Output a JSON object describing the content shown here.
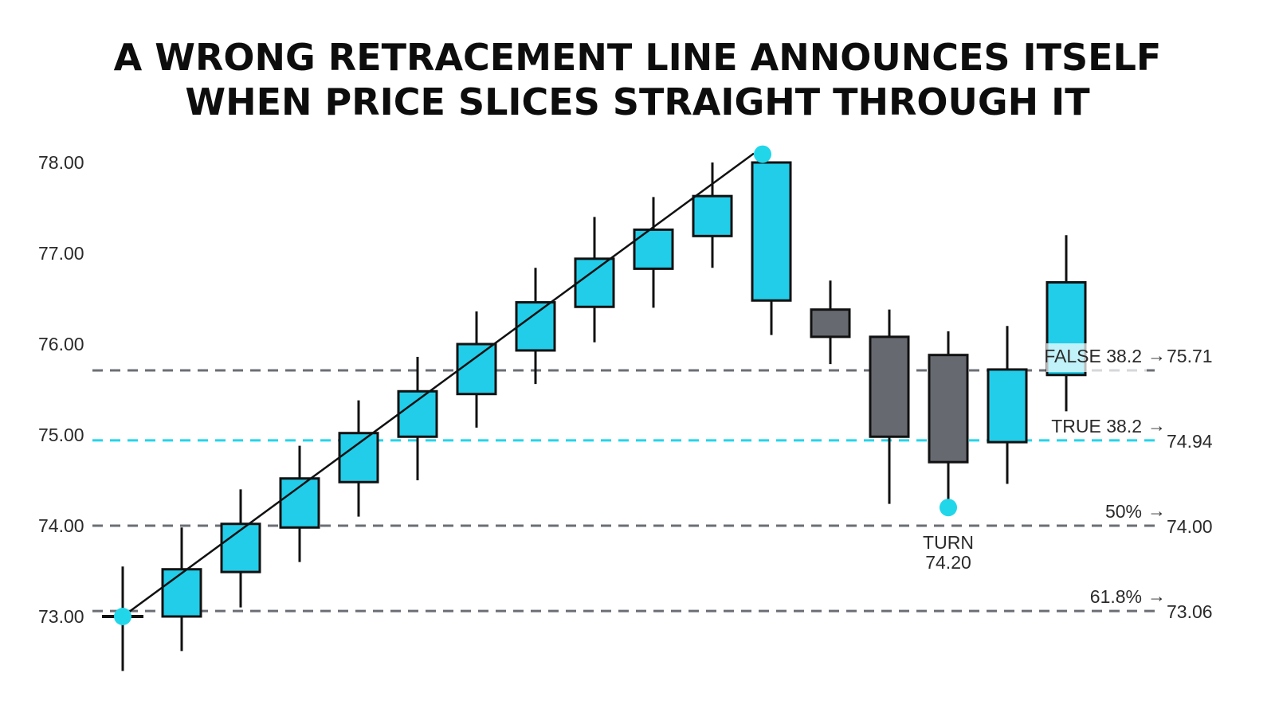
{
  "title": {
    "line1": "A WRONG RETRACEMENT LINE ANNOUNCES ITSELF",
    "line2": "WHEN PRICE SLICES STRAIGHT THROUGH IT"
  },
  "colors": {
    "bull": "#22cde9",
    "bear": "#666a70",
    "outline": "#111111",
    "accent": "#22d6ea",
    "level_gray": "#6b6f75"
  },
  "chart_data": {
    "type": "candlestick",
    "ylim": [
      72.4,
      78.2
    ],
    "y_ticks": [
      "78.00",
      "77.00",
      "76.00",
      "75.00",
      "74.00",
      "73.00"
    ],
    "candles": [
      {
        "o": 73.0,
        "h": 73.55,
        "l": 72.4,
        "c": 73.0,
        "dir": "doji"
      },
      {
        "o": 73.0,
        "h": 73.98,
        "l": 72.62,
        "c": 73.52,
        "dir": "up"
      },
      {
        "o": 73.49,
        "h": 74.4,
        "l": 73.1,
        "c": 74.02,
        "dir": "up"
      },
      {
        "o": 73.98,
        "h": 74.88,
        "l": 73.6,
        "c": 74.52,
        "dir": "up"
      },
      {
        "o": 74.48,
        "h": 75.38,
        "l": 74.1,
        "c": 75.02,
        "dir": "up"
      },
      {
        "o": 74.98,
        "h": 75.86,
        "l": 74.5,
        "c": 75.48,
        "dir": "up"
      },
      {
        "o": 75.45,
        "h": 76.36,
        "l": 75.08,
        "c": 76.0,
        "dir": "up"
      },
      {
        "o": 75.93,
        "h": 76.84,
        "l": 75.56,
        "c": 76.46,
        "dir": "up"
      },
      {
        "o": 76.41,
        "h": 77.4,
        "l": 76.02,
        "c": 76.94,
        "dir": "up"
      },
      {
        "o": 76.83,
        "h": 77.62,
        "l": 76.4,
        "c": 77.26,
        "dir": "up"
      },
      {
        "o": 77.19,
        "h": 78.0,
        "l": 76.84,
        "c": 77.63,
        "dir": "up"
      },
      {
        "o": 76.48,
        "h": 78.0,
        "l": 76.1,
        "c": 78.0,
        "dir": "up"
      },
      {
        "o": 76.38,
        "h": 76.7,
        "l": 75.78,
        "c": 76.08,
        "dir": "down"
      },
      {
        "o": 76.08,
        "h": 76.38,
        "l": 74.24,
        "c": 74.98,
        "dir": "down"
      },
      {
        "o": 75.88,
        "h": 76.14,
        "l": 74.2,
        "c": 74.7,
        "dir": "down"
      },
      {
        "o": 74.92,
        "h": 76.2,
        "l": 74.46,
        "c": 75.72,
        "dir": "up"
      },
      {
        "o": 75.66,
        "h": 77.2,
        "l": 75.26,
        "c": 76.68,
        "dir": "up"
      }
    ],
    "swing": {
      "low": 73.0,
      "high": 78.1
    },
    "levels": [
      {
        "id": "false382",
        "label": "FALSE 38.2",
        "value": "75.71",
        "y": 75.71,
        "style": "gray"
      },
      {
        "id": "true382",
        "label": "TRUE 38.2",
        "value": "74.94",
        "y": 74.94,
        "style": "accent"
      },
      {
        "id": "fifty",
        "label": "50%",
        "value": "74.00",
        "y": 74.0,
        "style": "gray"
      },
      {
        "id": "sixtyone",
        "label": "61.8%",
        "value": "73.06",
        "y": 73.06,
        "style": "gray"
      }
    ],
    "turn": {
      "label": "TURN",
      "value": "74.20",
      "y": 74.2,
      "candle_index": 14
    }
  }
}
